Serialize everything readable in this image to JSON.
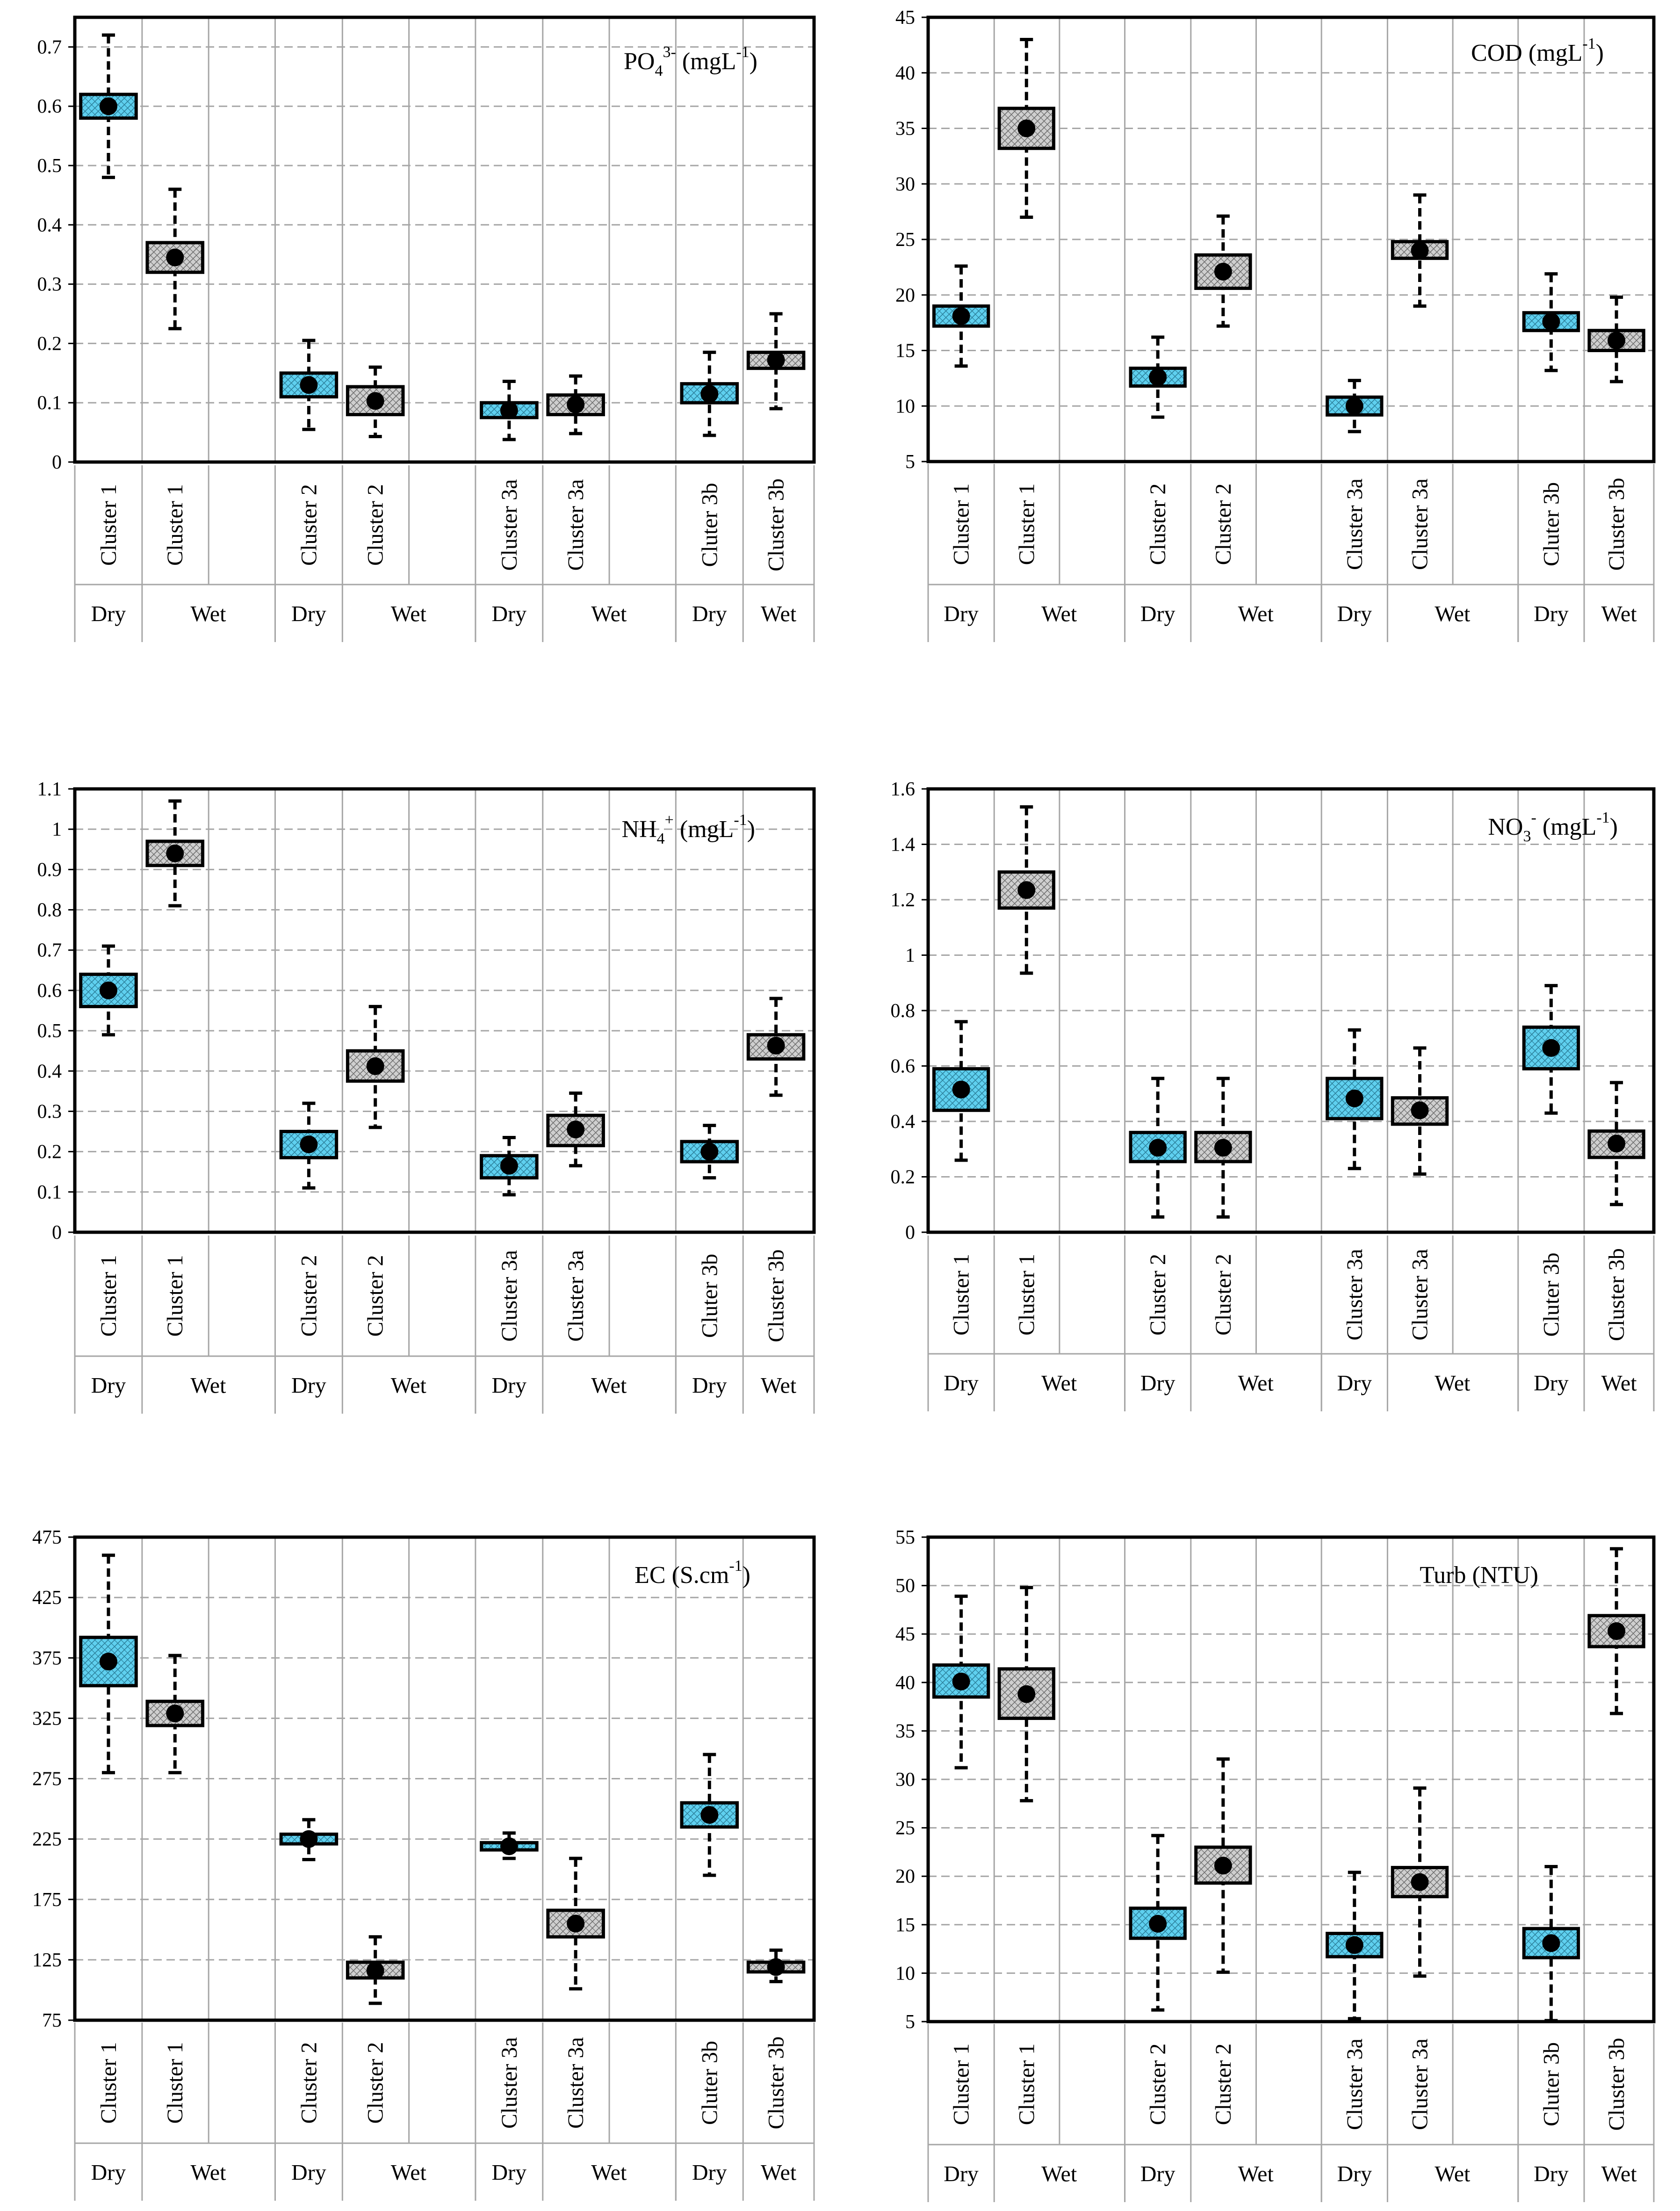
{
  "colors": {
    "dry_fill": "#5fd0ef",
    "wet_fill": "#cfcfcf",
    "grid": "#a6a6a6",
    "sep": "#a6a6a6",
    "frame": "#000000"
  },
  "chart_data": [
    {
      "type": "boxplot",
      "title_main": "PO",
      "title_sub": "4",
      "title_sup": "3-",
      "title_tail": " (mgL",
      "title_unit_sup": "-1",
      "title_close": ")",
      "ylim": [
        0,
        0.75
      ],
      "yticks": [
        0,
        0.1,
        0.2,
        0.3,
        0.4,
        0.5,
        0.6,
        0.7
      ],
      "ytick_labels": [
        "0",
        "0.1",
        "0.2",
        "0.3",
        "0.4",
        "0.5",
        "0.6",
        "0.7"
      ],
      "boxes": [
        {
          "cluster": "Cluster 1",
          "season": "Dry",
          "q1": 0.58,
          "q3": 0.62,
          "mean": 0.6,
          "min": 0.48,
          "max": 0.72
        },
        {
          "cluster": "Cluster 1",
          "season": "Wet",
          "q1": 0.32,
          "q3": 0.37,
          "mean": 0.345,
          "min": 0.225,
          "max": 0.46
        },
        {
          "cluster": "Cluster 2",
          "season": "Dry",
          "q1": 0.11,
          "q3": 0.15,
          "mean": 0.13,
          "min": 0.055,
          "max": 0.205
        },
        {
          "cluster": "Cluster 2",
          "season": "Wet",
          "q1": 0.08,
          "q3": 0.127,
          "mean": 0.103,
          "min": 0.043,
          "max": 0.16
        },
        {
          "cluster": "Cluster 3a",
          "season": "Dry",
          "q1": 0.075,
          "q3": 0.1,
          "mean": 0.087,
          "min": 0.038,
          "max": 0.136
        },
        {
          "cluster": "Cluster 3a",
          "season": "Wet",
          "q1": 0.08,
          "q3": 0.113,
          "mean": 0.097,
          "min": 0.048,
          "max": 0.145
        },
        {
          "cluster": "Cluter 3b",
          "season": "Dry",
          "q1": 0.1,
          "q3": 0.132,
          "mean": 0.115,
          "min": 0.045,
          "max": 0.185
        },
        {
          "cluster": "Cluster 3b",
          "season": "Wet",
          "q1": 0.158,
          "q3": 0.185,
          "mean": 0.172,
          "min": 0.09,
          "max": 0.25
        }
      ],
      "groups": [
        "Dry",
        "Wet",
        "Dry",
        "Wet",
        "Dry",
        "Wet",
        "Dry",
        "Wet"
      ]
    },
    {
      "type": "boxplot",
      "title_main": "COD",
      "title_sub": "",
      "title_sup": "",
      "title_tail": " (mgL",
      "title_unit_sup": "-1",
      "title_close": ")",
      "ylim": [
        5,
        45
      ],
      "yticks": [
        5,
        10,
        15,
        20,
        25,
        30,
        35,
        40,
        45
      ],
      "ytick_labels": [
        "5",
        "10",
        "15",
        "20",
        "25",
        "30",
        "35",
        "40",
        "45"
      ],
      "boxes": [
        {
          "cluster": "Cluster 1",
          "season": "Dry",
          "q1": 17.2,
          "q3": 19.0,
          "mean": 18.1,
          "min": 13.6,
          "max": 22.6
        },
        {
          "cluster": "Cluster 1",
          "season": "Wet",
          "q1": 33.2,
          "q3": 36.8,
          "mean": 35.0,
          "min": 27.0,
          "max": 43.0
        },
        {
          "cluster": "Cluster 2",
          "season": "Dry",
          "q1": 11.8,
          "q3": 13.4,
          "mean": 12.6,
          "min": 9.0,
          "max": 16.2
        },
        {
          "cluster": "Cluster 2",
          "season": "Wet",
          "q1": 20.6,
          "q3": 23.6,
          "mean": 22.1,
          "min": 17.2,
          "max": 27.1
        },
        {
          "cluster": "Cluster 3a",
          "season": "Dry",
          "q1": 9.2,
          "q3": 10.8,
          "mean": 10.0,
          "min": 7.7,
          "max": 12.3
        },
        {
          "cluster": "Cluster 3a",
          "season": "Wet",
          "q1": 23.3,
          "q3": 24.8,
          "mean": 24.0,
          "min": 19.0,
          "max": 29.0
        },
        {
          "cluster": "Cluter 3b",
          "season": "Dry",
          "q1": 16.8,
          "q3": 18.4,
          "mean": 17.6,
          "min": 13.2,
          "max": 21.9
        },
        {
          "cluster": "Cluster 3b",
          "season": "Wet",
          "q1": 15.0,
          "q3": 16.8,
          "mean": 15.9,
          "min": 12.2,
          "max": 19.8
        }
      ],
      "groups": [
        "Dry",
        "Wet",
        "Dry",
        "Wet",
        "Dry",
        "Wet",
        "Dry",
        "Wet"
      ]
    },
    {
      "type": "boxplot",
      "title_main": "NH",
      "title_sub": "4",
      "title_sup": "+",
      "title_tail": " (mgL",
      "title_unit_sup": "-1",
      "title_close": ")",
      "ylim": [
        0,
        1.1
      ],
      "yticks": [
        0,
        0.1,
        0.2,
        0.3,
        0.4,
        0.5,
        0.6,
        0.7,
        0.8,
        0.9,
        1,
        1.1
      ],
      "ytick_labels": [
        "0",
        "0.1",
        "0.2",
        "0.3",
        "0.4",
        "0.5",
        "0.6",
        "0.7",
        "0.8",
        "0.9",
        "1",
        "1.1"
      ],
      "boxes": [
        {
          "cluster": "Cluster 1",
          "season": "Dry",
          "q1": 0.56,
          "q3": 0.64,
          "mean": 0.6,
          "min": 0.49,
          "max": 0.71
        },
        {
          "cluster": "Cluster 1",
          "season": "Wet",
          "q1": 0.91,
          "q3": 0.97,
          "mean": 0.94,
          "min": 0.81,
          "max": 1.07
        },
        {
          "cluster": "Cluster 2",
          "season": "Dry",
          "q1": 0.185,
          "q3": 0.25,
          "mean": 0.218,
          "min": 0.11,
          "max": 0.32
        },
        {
          "cluster": "Cluster 2",
          "season": "Wet",
          "q1": 0.375,
          "q3": 0.45,
          "mean": 0.412,
          "min": 0.26,
          "max": 0.56
        },
        {
          "cluster": "Cluster 3a",
          "season": "Dry",
          "q1": 0.135,
          "q3": 0.19,
          "mean": 0.165,
          "min": 0.093,
          "max": 0.235
        },
        {
          "cluster": "Cluster 3a",
          "season": "Wet",
          "q1": 0.215,
          "q3": 0.29,
          "mean": 0.255,
          "min": 0.165,
          "max": 0.345
        },
        {
          "cluster": "Cluter 3b",
          "season": "Dry",
          "q1": 0.175,
          "q3": 0.225,
          "mean": 0.2,
          "min": 0.135,
          "max": 0.265
        },
        {
          "cluster": "Cluster 3b",
          "season": "Wet",
          "q1": 0.43,
          "q3": 0.49,
          "mean": 0.463,
          "min": 0.34,
          "max": 0.58
        }
      ],
      "groups": [
        "Dry",
        "Wet",
        "Dry",
        "Wet",
        "Dry",
        "Wet",
        "Dry",
        "Wet"
      ]
    },
    {
      "type": "boxplot",
      "title_main": "NO",
      "title_sub": "3",
      "title_sup": "-",
      "title_tail": " (mgL",
      "title_unit_sup": "-1",
      "title_close": ")",
      "ylim": [
        0,
        1.6
      ],
      "yticks": [
        0,
        0.2,
        0.4,
        0.6,
        0.8,
        1,
        1.2,
        1.4,
        1.6
      ],
      "ytick_labels": [
        "0",
        "0.2",
        "0.4",
        "0.6",
        "0.8",
        "1",
        "1.2",
        "1.4",
        "1.6"
      ],
      "boxes": [
        {
          "cluster": "Cluster 1",
          "season": "Dry",
          "q1": 0.44,
          "q3": 0.59,
          "mean": 0.515,
          "min": 0.26,
          "max": 0.76
        },
        {
          "cluster": "Cluster 1",
          "season": "Wet",
          "q1": 1.17,
          "q3": 1.3,
          "mean": 1.235,
          "min": 0.935,
          "max": 1.535
        },
        {
          "cluster": "Cluster 2",
          "season": "Dry",
          "q1": 0.255,
          "q3": 0.36,
          "mean": 0.305,
          "min": 0.055,
          "max": 0.555
        },
        {
          "cluster": "Cluster 2",
          "season": "Wet",
          "q1": 0.255,
          "q3": 0.36,
          "mean": 0.305,
          "min": 0.055,
          "max": 0.555
        },
        {
          "cluster": "Cluster 3a",
          "season": "Dry",
          "q1": 0.41,
          "q3": 0.555,
          "mean": 0.483,
          "min": 0.23,
          "max": 0.73
        },
        {
          "cluster": "Cluster 3a",
          "season": "Wet",
          "q1": 0.39,
          "q3": 0.485,
          "mean": 0.44,
          "min": 0.21,
          "max": 0.665
        },
        {
          "cluster": "Cluter 3b",
          "season": "Dry",
          "q1": 0.59,
          "q3": 0.74,
          "mean": 0.665,
          "min": 0.43,
          "max": 0.89
        },
        {
          "cluster": "Cluster 3b",
          "season": "Wet",
          "q1": 0.27,
          "q3": 0.365,
          "mean": 0.32,
          "min": 0.1,
          "max": 0.54
        }
      ],
      "groups": [
        "Dry",
        "Wet",
        "Dry",
        "Wet",
        "Dry",
        "Wet",
        "Dry",
        "Wet"
      ]
    },
    {
      "type": "boxplot",
      "title_main": "EC (S.cm",
      "title_sub": "",
      "title_sup": "-1",
      "title_tail": ")",
      "title_unit_sup": "",
      "title_close": "",
      "ylim": [
        75,
        475
      ],
      "yticks": [
        75,
        125,
        175,
        225,
        275,
        325,
        375,
        425,
        475
      ],
      "ytick_labels": [
        "75",
        "125",
        "175",
        "225",
        "275",
        "325",
        "375",
        "425",
        "475"
      ],
      "boxes": [
        {
          "cluster": "Cluster 1",
          "season": "Dry",
          "q1": 352,
          "q3": 392,
          "mean": 372,
          "min": 280,
          "max": 460
        },
        {
          "cluster": "Cluster 1",
          "season": "Wet",
          "q1": 319,
          "q3": 339,
          "mean": 329,
          "min": 280,
          "max": 377
        },
        {
          "cluster": "Cluster 2",
          "season": "Dry",
          "q1": 221,
          "q3": 229,
          "mean": 225,
          "min": 208,
          "max": 241
        },
        {
          "cluster": "Cluster 2",
          "season": "Wet",
          "q1": 110,
          "q3": 123,
          "mean": 116,
          "min": 89,
          "max": 144
        },
        {
          "cluster": "Cluster 3a",
          "season": "Dry",
          "q1": 216,
          "q3": 222,
          "mean": 219,
          "min": 209,
          "max": 230
        },
        {
          "cluster": "Cluster 3a",
          "season": "Wet",
          "q1": 144,
          "q3": 166,
          "mean": 155,
          "min": 101,
          "max": 209
        },
        {
          "cluster": "Cluter 3b",
          "season": "Dry",
          "q1": 235,
          "q3": 255,
          "mean": 245,
          "min": 195,
          "max": 295
        },
        {
          "cluster": "Cluster 3b",
          "season": "Wet",
          "q1": 115,
          "q3": 123,
          "mean": 119,
          "min": 107,
          "max": 133
        }
      ],
      "groups": [
        "Dry",
        "Wet",
        "Dry",
        "Wet",
        "Dry",
        "Wet",
        "Dry",
        "Wet"
      ]
    },
    {
      "type": "boxplot",
      "title_main": "Turb (NTU)",
      "title_sub": "",
      "title_sup": "",
      "title_tail": "",
      "title_unit_sup": "",
      "title_close": "",
      "ylim": [
        5,
        55
      ],
      "yticks": [
        5,
        10,
        15,
        20,
        25,
        30,
        35,
        40,
        45,
        50,
        55
      ],
      "ytick_labels": [
        "5",
        "10",
        "15",
        "20",
        "25",
        "30",
        "35",
        "40",
        "45",
        "50",
        "55"
      ],
      "boxes": [
        {
          "cluster": "Cluster 1",
          "season": "Dry",
          "q1": 38.5,
          "q3": 41.8,
          "mean": 40.1,
          "min": 31.2,
          "max": 48.9
        },
        {
          "cluster": "Cluster 1",
          "season": "Wet",
          "q1": 36.3,
          "q3": 41.4,
          "mean": 38.8,
          "min": 27.8,
          "max": 49.8
        },
        {
          "cluster": "Cluster 2",
          "season": "Dry",
          "q1": 13.6,
          "q3": 16.7,
          "mean": 15.1,
          "min": 6.2,
          "max": 24.2
        },
        {
          "cluster": "Cluster 2",
          "season": "Wet",
          "q1": 19.3,
          "q3": 23.0,
          "mean": 21.1,
          "min": 10.1,
          "max": 32.1
        },
        {
          "cluster": "Cluster 3a",
          "season": "Dry",
          "q1": 11.7,
          "q3": 14.1,
          "mean": 12.9,
          "min": 5.3,
          "max": 20.4
        },
        {
          "cluster": "Cluster 3a",
          "season": "Wet",
          "q1": 17.9,
          "q3": 20.9,
          "mean": 19.4,
          "min": 9.7,
          "max": 29.1
        },
        {
          "cluster": "Cluter 3b",
          "season": "Dry",
          "q1": 11.6,
          "q3": 14.6,
          "mean": 13.1,
          "min": 5.1,
          "max": 21.0
        },
        {
          "cluster": "Cluster 3b",
          "season": "Wet",
          "q1": 43.7,
          "q3": 46.9,
          "mean": 45.3,
          "min": 36.8,
          "max": 53.8
        }
      ],
      "groups": [
        "Dry",
        "Wet",
        "Dry",
        "Wet",
        "Dry",
        "Wet",
        "Dry",
        "Wet"
      ]
    }
  ]
}
